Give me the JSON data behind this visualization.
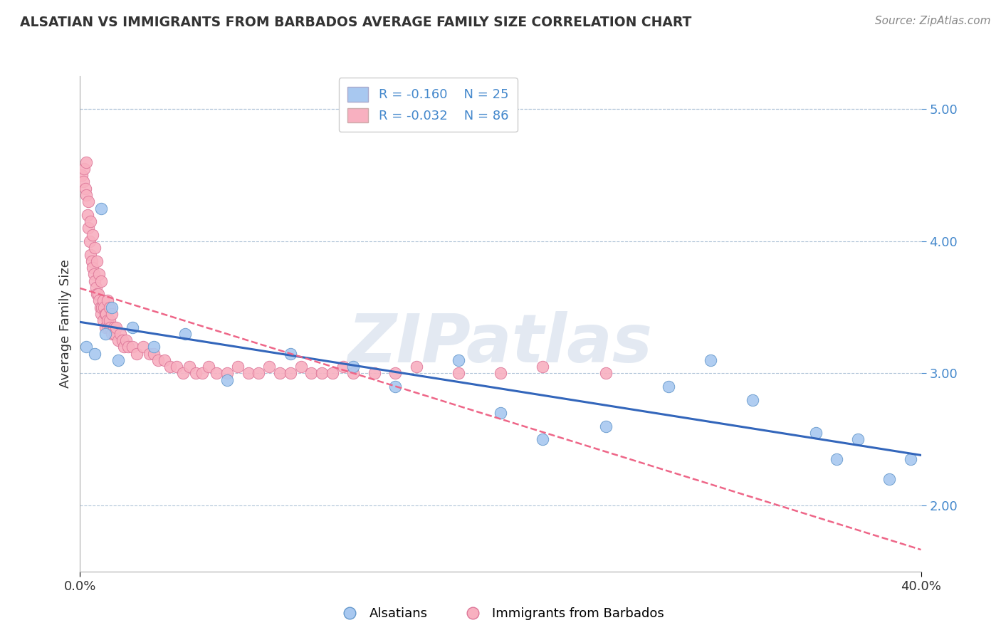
{
  "title": "ALSATIAN VS IMMIGRANTS FROM BARBADOS AVERAGE FAMILY SIZE CORRELATION CHART",
  "source": "Source: ZipAtlas.com",
  "ylabel": "Average Family Size",
  "xmin": 0.0,
  "xmax": 40.0,
  "ymin": 1.5,
  "ymax": 5.25,
  "yticks": [
    2.0,
    3.0,
    4.0,
    5.0
  ],
  "blue_color": "#a8c8f0",
  "pink_color": "#f8b0c0",
  "blue_edge": "#6699cc",
  "pink_edge": "#dd7799",
  "blue_line_color": "#3366bb",
  "pink_line_color": "#ee6688",
  "r_blue": -0.16,
  "n_blue": 25,
  "r_pink": -0.032,
  "n_pink": 86,
  "watermark": "ZIPatlas",
  "watermark_color": "#ccd8e8",
  "blue_scatter_x": [
    0.3,
    0.7,
    1.0,
    1.2,
    1.5,
    1.8,
    2.5,
    3.5,
    5.0,
    7.0,
    10.0,
    13.0,
    15.0,
    18.0,
    20.0,
    22.0,
    25.0,
    28.0,
    30.0,
    32.0,
    35.0,
    36.0,
    37.0,
    38.5,
    39.5
  ],
  "blue_scatter_y": [
    3.2,
    3.15,
    4.25,
    3.3,
    3.5,
    3.1,
    3.35,
    3.2,
    3.3,
    2.95,
    3.15,
    3.05,
    2.9,
    3.1,
    2.7,
    2.5,
    2.6,
    2.9,
    3.1,
    2.8,
    2.55,
    2.35,
    2.5,
    2.2,
    2.35
  ],
  "pink_scatter_x": [
    0.1,
    0.15,
    0.2,
    0.25,
    0.3,
    0.3,
    0.35,
    0.4,
    0.4,
    0.45,
    0.5,
    0.5,
    0.55,
    0.6,
    0.6,
    0.65,
    0.7,
    0.7,
    0.75,
    0.8,
    0.8,
    0.85,
    0.9,
    0.9,
    0.95,
    1.0,
    1.0,
    1.05,
    1.1,
    1.1,
    1.15,
    1.2,
    1.2,
    1.25,
    1.3,
    1.3,
    1.35,
    1.4,
    1.4,
    1.45,
    1.5,
    1.5,
    1.6,
    1.65,
    1.7,
    1.8,
    1.9,
    2.0,
    2.1,
    2.2,
    2.3,
    2.5,
    2.7,
    3.0,
    3.3,
    3.5,
    3.7,
    4.0,
    4.3,
    4.6,
    4.9,
    5.2,
    5.5,
    5.8,
    6.1,
    6.5,
    7.0,
    7.5,
    8.0,
    8.5,
    9.0,
    9.5,
    10.0,
    10.5,
    11.0,
    11.5,
    12.0,
    12.5,
    13.0,
    14.0,
    15.0,
    16.0,
    18.0,
    20.0,
    22.0,
    25.0
  ],
  "pink_scatter_y": [
    4.5,
    4.45,
    4.55,
    4.4,
    4.35,
    4.6,
    4.2,
    4.1,
    4.3,
    4.0,
    3.9,
    4.15,
    3.85,
    3.8,
    4.05,
    3.75,
    3.7,
    3.95,
    3.65,
    3.6,
    3.85,
    3.6,
    3.55,
    3.75,
    3.5,
    3.45,
    3.7,
    3.5,
    3.55,
    3.4,
    3.5,
    3.45,
    3.35,
    3.45,
    3.4,
    3.55,
    3.35,
    3.4,
    3.5,
    3.35,
    3.3,
    3.45,
    3.35,
    3.3,
    3.35,
    3.25,
    3.3,
    3.25,
    3.2,
    3.25,
    3.2,
    3.2,
    3.15,
    3.2,
    3.15,
    3.15,
    3.1,
    3.1,
    3.05,
    3.05,
    3.0,
    3.05,
    3.0,
    3.0,
    3.05,
    3.0,
    3.0,
    3.05,
    3.0,
    3.0,
    3.05,
    3.0,
    3.0,
    3.05,
    3.0,
    3.0,
    3.0,
    3.05,
    3.0,
    3.0,
    3.0,
    3.05,
    3.0,
    3.0,
    3.05,
    3.0
  ]
}
